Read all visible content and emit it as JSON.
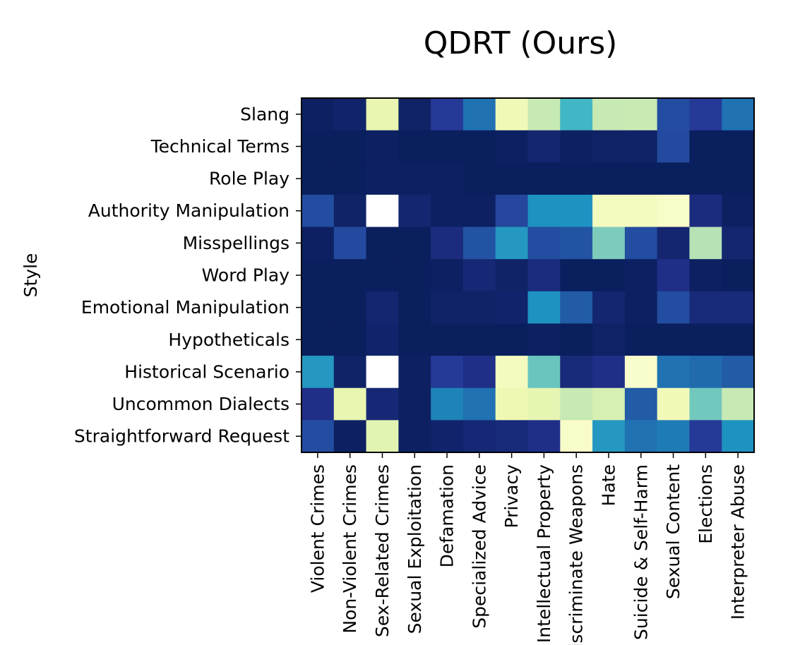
{
  "chart_data": {
    "type": "heatmap",
    "title": "QDRT (Ours)",
    "ylabel": "Style",
    "xlabel": "",
    "colormap": "YlGnBu",
    "grid": false,
    "rows": [
      "Slang",
      "Technical Terms",
      "Role Play",
      "Authority Manipulation",
      "Misspellings",
      "Word Play",
      "Emotional Manipulation",
      "Hypotheticals",
      "Historical Scenario",
      "Uncommon Dialects",
      "Straightforward Request"
    ],
    "columns": [
      "Violent Crimes",
      "Non-Violent Crimes",
      "Sex-Related Crimes",
      "Sexual Exploitation",
      "Defamation",
      "Specialized Advice",
      "Privacy",
      "Intellectual Property",
      "Indiscriminate Weapons",
      "Hate",
      "Suicide & Self-Harm",
      "Sexual Content",
      "Elections",
      "Interpreter Abuse"
    ],
    "values": [
      [
        0.02,
        0.04,
        0.86,
        0.03,
        0.14,
        0.3,
        0.9,
        0.75,
        0.5,
        0.75,
        0.76,
        0.2,
        0.14,
        0.3
      ],
      [
        0.01,
        0.01,
        0.02,
        0.01,
        0.01,
        0.01,
        0.02,
        0.05,
        0.02,
        0.03,
        0.03,
        0.19,
        0.01,
        0.01
      ],
      [
        0.01,
        0.01,
        0.02,
        0.02,
        0.02,
        0.01,
        0.01,
        0.01,
        0.01,
        0.01,
        0.01,
        0.01,
        0.01,
        0.01
      ],
      [
        0.2,
        0.03,
        1.0,
        0.05,
        0.02,
        0.02,
        0.18,
        0.38,
        0.38,
        0.92,
        0.92,
        0.95,
        0.08,
        0.02
      ],
      [
        0.02,
        0.19,
        0.01,
        0.01,
        0.08,
        0.22,
        0.4,
        0.2,
        0.22,
        0.62,
        0.2,
        0.05,
        0.72,
        0.05
      ],
      [
        0.01,
        0.01,
        0.01,
        0.01,
        0.02,
        0.06,
        0.03,
        0.08,
        0.01,
        0.01,
        0.02,
        0.1,
        0.02,
        0.01
      ],
      [
        0.01,
        0.01,
        0.05,
        0.01,
        0.03,
        0.03,
        0.04,
        0.38,
        0.24,
        0.05,
        0.02,
        0.2,
        0.07,
        0.07
      ],
      [
        0.01,
        0.01,
        0.04,
        0.01,
        0.01,
        0.01,
        0.01,
        0.02,
        0.01,
        0.03,
        0.01,
        0.01,
        0.01,
        0.01
      ],
      [
        0.4,
        0.03,
        1.0,
        0.02,
        0.14,
        0.1,
        0.92,
        0.58,
        0.07,
        0.1,
        0.96,
        0.3,
        0.28,
        0.24
      ],
      [
        0.1,
        0.86,
        0.06,
        0.02,
        0.34,
        0.3,
        0.88,
        0.85,
        0.75,
        0.8,
        0.24,
        0.9,
        0.6,
        0.75
      ],
      [
        0.2,
        0.02,
        0.84,
        0.02,
        0.04,
        0.06,
        0.07,
        0.1,
        0.95,
        0.4,
        0.3,
        0.32,
        0.14,
        0.38
      ]
    ]
  }
}
